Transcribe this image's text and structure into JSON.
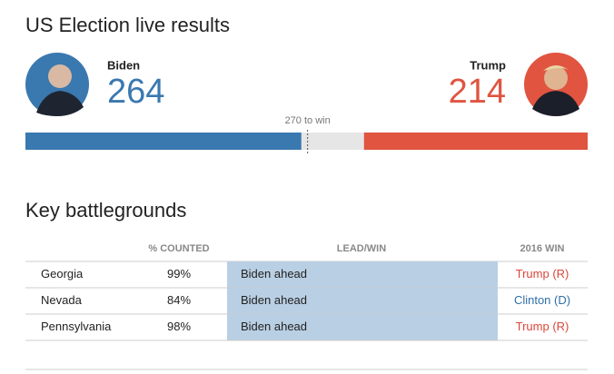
{
  "header": {
    "title": "US Election live results"
  },
  "race": {
    "xlim": [
      0,
      538
    ],
    "threshold": {
      "value": 270,
      "label": "270 to win"
    },
    "candidates": [
      {
        "name": "Biden",
        "votes": 264,
        "color": "#3a78b0",
        "side": "left"
      },
      {
        "name": "Trump",
        "votes": 214,
        "color": "#e05440",
        "side": "right"
      }
    ]
  },
  "battlegrounds": {
    "title": "Key battlegrounds",
    "columns": [
      "% COUNTED",
      "LEAD/WIN",
      "2016 WIN"
    ],
    "lead_color": "#b9cfe3",
    "rows": [
      [
        "Georgia",
        "99%",
        "Biden ahead",
        "Trump (R)"
      ],
      [
        "Nevada",
        "84%",
        "Biden ahead",
        "Clinton (D)"
      ],
      [
        "Pennsylvania",
        "98%",
        "Biden ahead",
        "Trump (R)"
      ]
    ],
    "winner_colors": [
      "#d9473a",
      "#2f6fa8",
      "#d9473a"
    ]
  }
}
